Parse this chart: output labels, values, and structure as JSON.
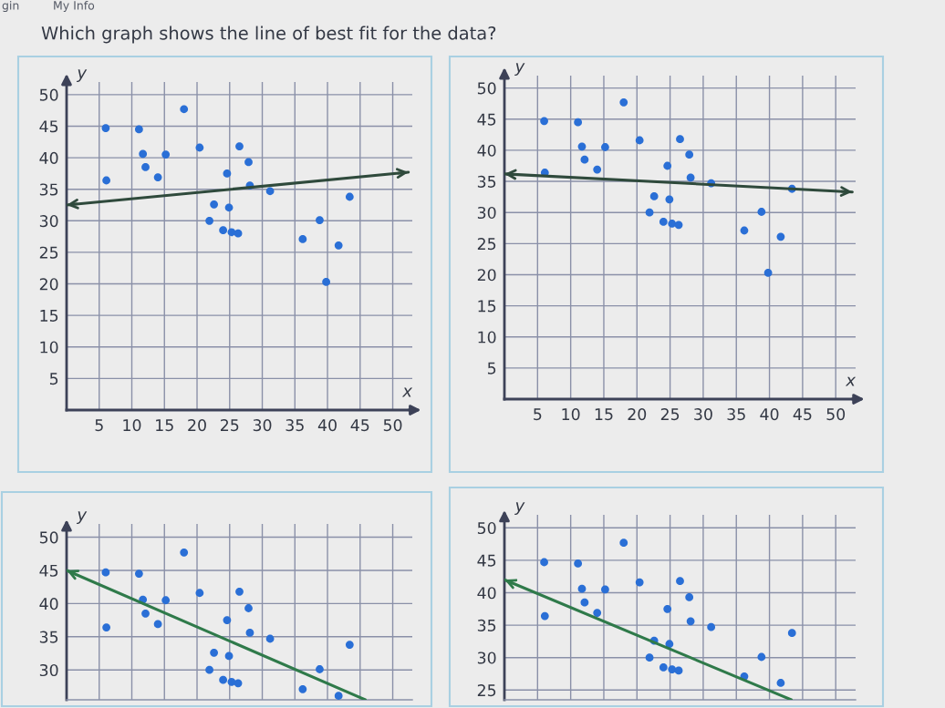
{
  "chart_data": [
    {
      "type": "other",
      "title": "Which graph shows the line of best fit for the data?",
      "annotations": [
        "gin",
        "My Info"
      ]
    },
    {
      "type": "scatter",
      "xlabel": "x",
      "ylabel": "y",
      "xlim": [
        0,
        53
      ],
      "ylim": [
        0,
        52
      ],
      "xticks": [
        5,
        10,
        15,
        20,
        25,
        30,
        35,
        40,
        45,
        50
      ],
      "yticks": [
        5,
        10,
        15,
        20,
        25,
        30,
        35,
        40,
        45,
        50
      ],
      "grid": true,
      "x": [
        6.0,
        6.1,
        11.1,
        11.7,
        12.1,
        14.0,
        15.2,
        18.0,
        20.4,
        21.9,
        22.6,
        24.0,
        24.6,
        24.9,
        25.3,
        26.3,
        26.5,
        27.9,
        28.1,
        31.2,
        36.2,
        38.8,
        39.8,
        41.7,
        43.4
      ],
      "series": [
        {
          "type": "scatter",
          "color": "#2a6fd6",
          "marker": "circle",
          "values": [
            44.7,
            36.4,
            44.5,
            40.6,
            38.5,
            36.9,
            40.5,
            47.7,
            41.6,
            30.0,
            32.6,
            28.5,
            37.5,
            32.1,
            28.2,
            28.0,
            41.8,
            39.3,
            35.6,
            34.7,
            27.1,
            30.1,
            20.3,
            26.1,
            33.8
          ]
        },
        {
          "type": "line",
          "color": "#2f4a3c",
          "line_style": "solid",
          "x": [
            0,
            52.4
          ],
          "values": [
            32.5,
            37.7
          ]
        }
      ]
    },
    {
      "type": "scatter",
      "xlabel": "x",
      "ylabel": "y",
      "xlim": [
        0,
        53
      ],
      "ylim": [
        0,
        52
      ],
      "xticks": [
        5,
        10,
        15,
        20,
        25,
        30,
        35,
        40,
        45,
        50
      ],
      "yticks": [
        5,
        10,
        15,
        20,
        25,
        30,
        35,
        40,
        45,
        50
      ],
      "grid": true,
      "x": [
        6.0,
        6.1,
        11.1,
        11.7,
        12.1,
        14.0,
        15.2,
        18.0,
        20.4,
        21.9,
        22.6,
        24.0,
        24.6,
        24.9,
        25.3,
        26.3,
        26.5,
        27.9,
        28.1,
        31.2,
        36.2,
        38.8,
        39.8,
        41.7,
        43.4
      ],
      "series": [
        {
          "type": "scatter",
          "color": "#2a6fd6",
          "marker": "circle",
          "values": [
            44.7,
            36.4,
            44.5,
            40.6,
            38.5,
            36.9,
            40.5,
            47.7,
            41.6,
            30.0,
            32.6,
            28.5,
            37.5,
            32.1,
            28.2,
            28.0,
            41.8,
            39.3,
            35.6,
            34.7,
            27.1,
            30.1,
            20.3,
            26.1,
            33.8
          ]
        },
        {
          "type": "line",
          "color": "#2f4a3c",
          "line_style": "solid",
          "x": [
            0,
            52.5
          ],
          "values": [
            36.2,
            33.3
          ]
        }
      ]
    },
    {
      "type": "scatter",
      "ylabel": "y",
      "xlim": [
        0,
        53
      ],
      "ylim": [
        25.5,
        52
      ],
      "xticks": [
        5,
        10,
        15,
        20,
        25,
        30,
        35,
        40,
        45,
        50
      ],
      "yticks": [
        30,
        35,
        40,
        45,
        50
      ],
      "grid": true,
      "tick_labels": "y",
      "x": [
        6.0,
        6.1,
        11.1,
        11.7,
        12.1,
        14.0,
        15.2,
        18.0,
        20.4,
        21.9,
        22.6,
        24.0,
        24.6,
        24.9,
        25.3,
        26.3,
        26.5,
        27.9,
        28.1,
        31.2,
        36.2,
        38.8,
        41.7,
        43.4
      ],
      "series": [
        {
          "type": "scatter",
          "color": "#2a6fd6",
          "marker": "circle",
          "values": [
            44.7,
            36.4,
            44.5,
            40.6,
            38.5,
            36.9,
            40.5,
            47.7,
            41.6,
            30.0,
            32.6,
            28.5,
            37.5,
            32.1,
            28.2,
            28.0,
            41.8,
            39.3,
            35.6,
            34.7,
            27.1,
            30.1,
            26.1,
            33.8
          ]
        },
        {
          "type": "line",
          "color": "#2f7a4a",
          "line_style": "solid",
          "x": [
            0,
            45.8
          ],
          "values": [
            45.0,
            25.5
          ]
        }
      ]
    },
    {
      "type": "scatter",
      "ylabel": "y",
      "xlim": [
        0,
        53
      ],
      "ylim": [
        23.5,
        52
      ],
      "xticks": [
        5,
        10,
        15,
        20,
        25,
        30,
        35,
        40,
        45,
        50
      ],
      "yticks": [
        25,
        30,
        35,
        40,
        45,
        50
      ],
      "grid": true,
      "tick_labels": "y",
      "x": [
        6.0,
        6.1,
        11.1,
        11.7,
        12.1,
        14.0,
        15.2,
        18.0,
        20.4,
        21.9,
        22.6,
        24.0,
        24.6,
        24.9,
        25.3,
        26.3,
        26.5,
        27.9,
        28.1,
        31.2,
        36.2,
        38.8,
        41.7,
        43.4
      ],
      "series": [
        {
          "type": "scatter",
          "color": "#2a6fd6",
          "marker": "circle",
          "values": [
            44.7,
            36.4,
            44.5,
            40.6,
            38.5,
            36.9,
            40.5,
            47.7,
            41.6,
            30.0,
            32.6,
            28.5,
            37.5,
            32.1,
            28.2,
            28.0,
            41.8,
            39.3,
            35.6,
            34.7,
            27.1,
            30.1,
            26.1,
            33.8
          ]
        },
        {
          "type": "line",
          "color": "#2f7a4a",
          "line_style": "solid",
          "x": [
            0,
            43.3
          ],
          "values": [
            42.0,
            23.5
          ]
        }
      ]
    }
  ]
}
